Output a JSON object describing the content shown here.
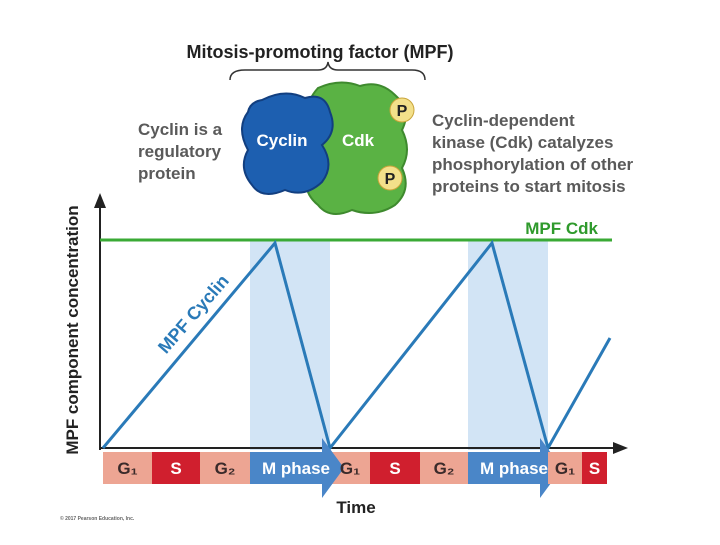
{
  "header": {
    "title": "Mitosis-promoting factor (MPF)"
  },
  "cyclin_note": {
    "lines": [
      "Cyclin is a",
      "regulatory",
      "protein"
    ]
  },
  "cdk_note": {
    "lines": [
      "Cyclin-dependent",
      "kinase (Cdk) catalyzes",
      "phosphorylation of other",
      "proteins to start mitosis"
    ]
  },
  "complex": {
    "cyclin": "Cyclin",
    "cdk": "Cdk",
    "phosphates": [
      "P",
      "P"
    ]
  },
  "graph": {
    "y_label": "MPF component concentration",
    "x_label": "Time",
    "cdk_line": "MPF Cdk",
    "cyclin_line": "MPF Cyclin",
    "phases": [
      "G₁",
      "S",
      "G₂",
      "M phase",
      "G₁",
      "S",
      "G₂",
      "M phase",
      "G₁",
      "S"
    ]
  },
  "footer": {
    "copyright": "© 2017 Pearson Education, Inc."
  }
}
